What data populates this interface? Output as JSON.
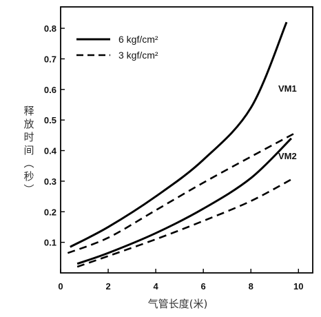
{
  "chart_data": {
    "type": "line",
    "xlabel": "气管长度(米)",
    "ylabel": "释放时间(秒)",
    "x_ticks": [
      "0",
      "2",
      "4",
      "6",
      "8",
      "10"
    ],
    "y_ticks": [
      "0.1",
      "0.2",
      "0.3",
      "0.4",
      "0.5",
      "0.6",
      "0.7",
      "0.8"
    ],
    "xlim": [
      0,
      10.6
    ],
    "ylim": [
      0,
      0.87
    ],
    "grid": false,
    "legend_position": "top-left",
    "legend": [
      {
        "label": "6 kgf/cm²",
        "style": "solid"
      },
      {
        "label": "3 kgf/cm²",
        "style": "dashed"
      }
    ],
    "annotations": [
      "VM1",
      "VM2"
    ],
    "series": [
      {
        "group": "VM1",
        "pressure": "6 kgf/cm²",
        "style": "solid",
        "x": [
          0.4,
          2,
          4,
          6,
          8,
          9.5
        ],
        "y": [
          0.085,
          0.15,
          0.25,
          0.37,
          0.54,
          0.82
        ]
      },
      {
        "group": "VM1",
        "pressure": "3 kgf/cm²",
        "style": "dashed",
        "x": [
          0.3,
          2,
          4,
          6,
          8,
          9.8
        ],
        "y": [
          0.065,
          0.115,
          0.205,
          0.295,
          0.38,
          0.455
        ]
      },
      {
        "group": "VM2",
        "pressure": "6 kgf/cm²",
        "style": "solid",
        "x": [
          0.7,
          2,
          4,
          6,
          8,
          9.7
        ],
        "y": [
          0.03,
          0.065,
          0.13,
          0.21,
          0.31,
          0.44
        ]
      },
      {
        "group": "VM2",
        "pressure": "3 kgf/cm²",
        "style": "dashed",
        "x": [
          0.7,
          2,
          4,
          6,
          8,
          9.8
        ],
        "y": [
          0.02,
          0.055,
          0.11,
          0.17,
          0.235,
          0.31
        ]
      }
    ]
  }
}
